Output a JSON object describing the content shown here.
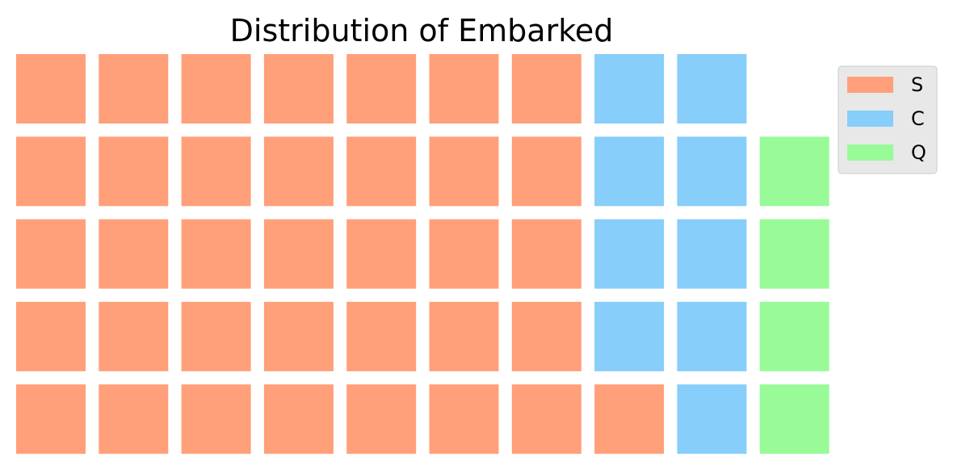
{
  "chart_data": {
    "type": "waffle",
    "title": "Distribution of Embarked",
    "grid": {
      "rows": 5,
      "columns": 10,
      "fill_order": "column-major, bottom-to-top"
    },
    "series": [
      {
        "name": "S",
        "value": 36,
        "color": "#FFA07A"
      },
      {
        "name": "C",
        "value": 9,
        "color": "#87CEFA"
      },
      {
        "name": "Q",
        "value": 4,
        "color": "#98FB98"
      }
    ],
    "legend": {
      "position": "top-right"
    }
  }
}
